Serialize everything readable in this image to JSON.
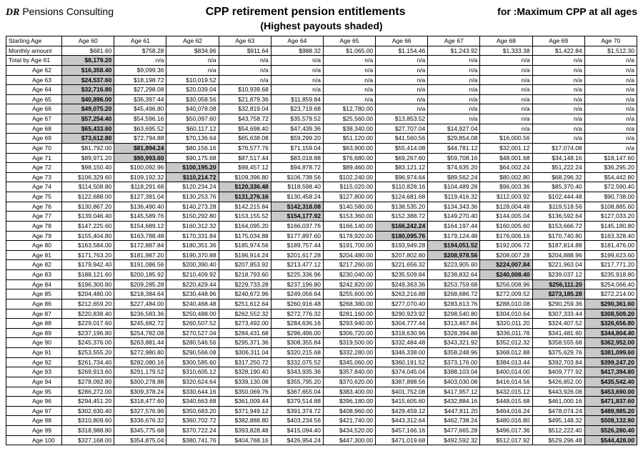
{
  "header": {
    "brand_dr": "DR",
    "brand_rest": " Pensions Consulting",
    "title": "CPP retirement pension entitlements",
    "subtitle": "(Highest payouts shaded)",
    "for_text": "for :Maximum CPP at all ages"
  },
  "table": {
    "col_headers": [
      "Starting Age",
      "Age 60",
      "Age 61",
      "Age 62",
      "Age 63",
      "Age 64",
      "Age 65",
      "Age 66",
      "Age 67",
      "Age 68",
      "Age 69",
      "Age 70"
    ],
    "monthly_row_label": "Monthly amount",
    "monthly_row": [
      "$681.60",
      "$758.28",
      "$834.96",
      "$911.64",
      "$988.32",
      "$1,065.00",
      "$1,154.46",
      "$1,243.92",
      "$1,333.38",
      "$1,422.84",
      "$1,512.30"
    ],
    "total_by_prefix": "Total by",
    "rows": [
      {
        "age": "Age 61",
        "cells": [
          "$8,179.20",
          "n/a",
          "n/a",
          "n/a",
          "n/a",
          "n/a",
          "n/a",
          "n/a",
          "n/a",
          "n/a",
          "n/a"
        ],
        "hi": 0
      },
      {
        "age": "Age 62",
        "cells": [
          "$16,358.40",
          "$9,099.36",
          "n/a",
          "n/a",
          "n/a",
          "n/a",
          "n/a",
          "n/a",
          "n/a",
          "n/a",
          "n/a"
        ],
        "hi": 0
      },
      {
        "age": "Age 63",
        "cells": [
          "$24,537.60",
          "$18,198.72",
          "$10,019.52",
          "n/a",
          "n/a",
          "n/a",
          "n/a",
          "n/a",
          "n/a",
          "n/a",
          "n/a"
        ],
        "hi": 0
      },
      {
        "age": "Age 64",
        "cells": [
          "$32,716.80",
          "$27,298.08",
          "$20,039.04",
          "$10,939.68",
          "n/a",
          "n/a",
          "n/a",
          "n/a",
          "n/a",
          "n/a",
          "n/a"
        ],
        "hi": 0
      },
      {
        "age": "Age 65",
        "cells": [
          "$40,896.00",
          "$36,397.44",
          "$30,058.56",
          "$21,879.36",
          "$11,859.84",
          "n/a",
          "n/a",
          "n/a",
          "n/a",
          "n/a",
          "n/a"
        ],
        "hi": 0
      },
      {
        "age": "Age 66",
        "cells": [
          "$49,075.20",
          "$45,496.80",
          "$40,078.08",
          "$32,819.04",
          "$23,719.68",
          "$12,780.00",
          "n/a",
          "n/a",
          "n/a",
          "n/a",
          "n/a"
        ],
        "hi": 0
      },
      {
        "age": "Age 67",
        "cells": [
          "$57,254.40",
          "$54,596.16",
          "$50,097.60",
          "$43,758.72",
          "$35,579.52",
          "$25,560.00",
          "$13,853.52",
          "n/a",
          "n/a",
          "n/a",
          "n/a"
        ],
        "hi": 0
      },
      {
        "age": "Age 68",
        "cells": [
          "$65,433.60",
          "$63,695.52",
          "$60,117.12",
          "$54,698.40",
          "$47,439.36",
          "$38,340.00",
          "$27,707.04",
          "$14,927.04",
          "n/a",
          "n/a",
          "n/a"
        ],
        "hi": 0
      },
      {
        "age": "Age 69",
        "cells": [
          "$73,612.80",
          "$72,794.88",
          "$70,136.64",
          "$65,638.08",
          "$59,299.20",
          "$51,120.00",
          "$41,560.56",
          "$29,854.08",
          "$16,000.56",
          "n/a",
          "n/a"
        ],
        "hi": 0
      },
      {
        "age": "Age 70",
        "cells": [
          "$81,792.00",
          "$81,894.24",
          "$80,156.16",
          "$76,577.76",
          "$71,159.04",
          "$63,900.00",
          "$55,414.08",
          "$44,781.12",
          "$32,001.12",
          "$17,074.08",
          "n/a"
        ],
        "hi": 1
      },
      {
        "age": "Age 71",
        "cells": [
          "$89,971.20",
          "$90,993.60",
          "$90,175.68",
          "$87,517.44",
          "$83,018.88",
          "$76,680.00",
          "$69,267.60",
          "$59,708.16",
          "$48,001.68",
          "$34,148.16",
          "$18,147.60"
        ],
        "hi": 1
      },
      {
        "age": "Age 72",
        "cells": [
          "$98,150.40",
          "$100,092.96",
          "$100,195.20",
          "$98,457.12",
          "$94,878.72",
          "$89,460.00",
          "$83,121.12",
          "$74,635.20",
          "$64,002.24",
          "$51,222.24",
          "$36,295.20"
        ],
        "hi": 2
      },
      {
        "age": "Age 73",
        "cells": [
          "$106,329.60",
          "$109,192.32",
          "$110,214.72",
          "$109,396.80",
          "$106,738.56",
          "$102,240.00",
          "$96,974.64",
          "$89,562.24",
          "$80,002.80",
          "$68,296.32",
          "$54,442.80"
        ],
        "hi": 2
      },
      {
        "age": "Age 74",
        "cells": [
          "$114,508.80",
          "$118,291.68",
          "$120,234.24",
          "$120,336.48",
          "$118,598.40",
          "$115,020.00",
          "$110,828.16",
          "$104,489.28",
          "$96,003.36",
          "$85,370.40",
          "$72,590.40"
        ],
        "hi": 3
      },
      {
        "age": "Age 75",
        "cells": [
          "$122,688.00",
          "$127,391.04",
          "$130,253.76",
          "$131,276.16",
          "$130,458.24",
          "$127,800.00",
          "$124,681.68",
          "$119,416.32",
          "$112,003.92",
          "$102,444.48",
          "$90,738.00"
        ],
        "hi": 3
      },
      {
        "age": "Age 76",
        "cells": [
          "$130,867.20",
          "$136,490.40",
          "$140,273.28",
          "$142,215.84",
          "$142,318.08",
          "$140,580.00",
          "$138,535.20",
          "$134,343.36",
          "$128,004.48",
          "$119,518.56",
          "$108,885.60"
        ],
        "hi": 4
      },
      {
        "age": "Age 77",
        "cells": [
          "$139,046.40",
          "$145,589.76",
          "$150,292.80",
          "$153,155.52",
          "$154,177.92",
          "$153,360.00",
          "$152,388.72",
          "$149,270.40",
          "$144,005.04",
          "$136,592.64",
          "$127,033.20"
        ],
        "hi": 4
      },
      {
        "age": "Age 78",
        "cells": [
          "$147,225.60",
          "$154,689.12",
          "$160,312.32",
          "$164,095.20",
          "$166,037.76",
          "$166,140.00",
          "$166,242.24",
          "$164,197.44",
          "$160,005.60",
          "$153,666.72",
          "$145,180.80"
        ],
        "hi": 6
      },
      {
        "age": "Age 79",
        "cells": [
          "$155,404.80",
          "$163,788.48",
          "$170,331.84",
          "$175,034.88",
          "$177,897.60",
          "$178,920.00",
          "$180,095.76",
          "$179,124.48",
          "$176,006.16",
          "$170,740.80",
          "$163,328.40"
        ],
        "hi": 6
      },
      {
        "age": "Age 80",
        "cells": [
          "$163,584.00",
          "$172,887.84",
          "$180,351.36",
          "$185,974.56",
          "$189,757.44",
          "$191,700.00",
          "$193,949.28",
          "$194,051.52",
          "$192,006.72",
          "$187,814.88",
          "$181,476.00"
        ],
        "hi": 7
      },
      {
        "age": "Age 81",
        "cells": [
          "$171,763.20",
          "$181,987.20",
          "$190,370.88",
          "$196,914.24",
          "$201,617.28",
          "$204,480.00",
          "$207,802.80",
          "$208,978.56",
          "$208,007.28",
          "$204,888.96",
          "$199,623.60"
        ],
        "hi": 7
      },
      {
        "age": "Age 82",
        "cells": [
          "$179,942.40",
          "$191,086.56",
          "$200,390.40",
          "$207,853.92",
          "$213,477.12",
          "$217,260.00",
          "$221,656.32",
          "$223,905.60",
          "$224,007.84",
          "$221,963.04",
          "$217,771.20"
        ],
        "hi": 8
      },
      {
        "age": "Age 83",
        "cells": [
          "$188,121.60",
          "$200,185.92",
          "$210,409.92",
          "$218,793.60",
          "$225,336.96",
          "$230,040.00",
          "$235,509.84",
          "$238,832.64",
          "$240,008.40",
          "$239,037.12",
          "$235,918.80"
        ],
        "hi": 8
      },
      {
        "age": "Age 84",
        "cells": [
          "$196,300.80",
          "$209,285.28",
          "$220,429.44",
          "$229,733.28",
          "$237,196.80",
          "$242,820.00",
          "$249,363.36",
          "$253,759.68",
          "$256,008.96",
          "$256,111.20",
          "$254,066.40"
        ],
        "hi": 9
      },
      {
        "age": "Age 85",
        "cells": [
          "$204,480.00",
          "$218,384.64",
          "$230,448.96",
          "$240,672.96",
          "$249,056.64",
          "$255,600.00",
          "$263,216.88",
          "$268,686.72",
          "$272,009.52",
          "$273,185.28",
          "$272,214.00"
        ],
        "hi": 9
      },
      {
        "age": "Age 86",
        "cells": [
          "$212,659.20",
          "$227,484.00",
          "$240,468.48",
          "$251,612.64",
          "$260,916.48",
          "$268,380.00",
          "$277,070.40",
          "$283,613.76",
          "$288,010.08",
          "$290,259.36",
          "$290,361.60"
        ],
        "hi": 10
      },
      {
        "age": "Age 87",
        "cells": [
          "$220,838.40",
          "$236,583.36",
          "$250,488.00",
          "$262,552.32",
          "$272,776.32",
          "$281,160.00",
          "$290,923.92",
          "$298,540.80",
          "$304,010.64",
          "$307,333.44",
          "$308,509.20"
        ],
        "hi": 10
      },
      {
        "age": "Age 88",
        "cells": [
          "$229,017.60",
          "$245,682.72",
          "$260,507.52",
          "$273,492.00",
          "$284,636.16",
          "$293,940.00",
          "$304,777.44",
          "$313,467.84",
          "$320,011.20",
          "$324,407.52",
          "$326,656.80"
        ],
        "hi": 10
      },
      {
        "age": "Age 89",
        "cells": [
          "$237,196.80",
          "$254,782.08",
          "$270,527.04",
          "$284,431.68",
          "$296,496.00",
          "$306,720.00",
          "$318,630.96",
          "$328,394.88",
          "$336,011.76",
          "$341,481.60",
          "$344,804.40"
        ],
        "hi": 10
      },
      {
        "age": "Age 90",
        "cells": [
          "$245,376.00",
          "$263,881.44",
          "$280,546.56",
          "$295,371.36",
          "$308,355.84",
          "$319,500.00",
          "$332,484.48",
          "$343,321.92",
          "$352,012.32",
          "$358,555.68",
          "$362,952.00"
        ],
        "hi": 10
      },
      {
        "age": "Age 91",
        "cells": [
          "$253,555.20",
          "$272,980.80",
          "$290,566.08",
          "$306,311.04",
          "$320,215.68",
          "$332,280.00",
          "$346,338.00",
          "$358,248.96",
          "$368,012.88",
          "$375,629.76",
          "$381,099.60"
        ],
        "hi": 10
      },
      {
        "age": "Age 92",
        "cells": [
          "$261,734.40",
          "$282,080.16",
          "$300,585.60",
          "$317,250.72",
          "$332,075.52",
          "$345,060.00",
          "$360,191.52",
          "$373,176.00",
          "$384,013.44",
          "$392,703.84",
          "$399,247.20"
        ],
        "hi": 10
      },
      {
        "age": "Age 93",
        "cells": [
          "$269,913.60",
          "$291,179.52",
          "$310,605.12",
          "$328,190.40",
          "$343,935.36",
          "$357,840.00",
          "$374,045.04",
          "$388,103.04",
          "$400,014.00",
          "$409,777.92",
          "$417,394.80"
        ],
        "hi": 10
      },
      {
        "age": "Age 94",
        "cells": [
          "$278,092.80",
          "$300,278.88",
          "$320,624.64",
          "$339,130.08",
          "$355,795.20",
          "$370,620.00",
          "$387,898.56",
          "$403,030.08",
          "$416,014.56",
          "$426,852.00",
          "$435,542.40"
        ],
        "hi": 10
      },
      {
        "age": "Age 95",
        "cells": [
          "$286,272.00",
          "$309,378.24",
          "$330,644.16",
          "$350,069.76",
          "$367,655.04",
          "$383,400.00",
          "$401,752.08",
          "$417,957.12",
          "$432,015.12",
          "$443,926.08",
          "$453,690.00"
        ],
        "hi": 10
      },
      {
        "age": "Age 96",
        "cells": [
          "$294,451.20",
          "$318,477.60",
          "$340,663.68",
          "$361,009.44",
          "$379,514.88",
          "$396,180.00",
          "$415,605.60",
          "$432,884.16",
          "$448,015.68",
          "$461,000.16",
          "$471,837.60"
        ],
        "hi": 10
      },
      {
        "age": "Age 97",
        "cells": [
          "$302,630.40",
          "$327,576.96",
          "$350,683.20",
          "$371,949.12",
          "$391,374.72",
          "$408,960.00",
          "$429,459.12",
          "$447,811.20",
          "$464,016.24",
          "$478,074.24",
          "$489,985.20"
        ],
        "hi": 10
      },
      {
        "age": "Age 98",
        "cells": [
          "$310,809.60",
          "$336,676.32",
          "$360,702.72",
          "$382,888.80",
          "$403,234.56",
          "$421,740.00",
          "$443,312.64",
          "$462,738.24",
          "$480,016.80",
          "$495,148.32",
          "$508,132.80"
        ],
        "hi": 10
      },
      {
        "age": "Age 99",
        "cells": [
          "$318,988.80",
          "$345,775.68",
          "$370,722.24",
          "$393,828.48",
          "$415,094.40",
          "$434,520.00",
          "$457,166.16",
          "$477,665.28",
          "$496,017.36",
          "$512,222.40",
          "$526,280.40"
        ],
        "hi": 10
      },
      {
        "age": "Age 100",
        "cells": [
          "$327,168.00",
          "$354,875.04",
          "$380,741.76",
          "$404,768.16",
          "$426,954.24",
          "$447,300.00",
          "$471,019.68",
          "$492,592.32",
          "$512,017.92",
          "$529,296.48",
          "$544,428.00"
        ],
        "hi": 10
      }
    ]
  },
  "style": {
    "shaded_bg": "#c9c9c9"
  }
}
